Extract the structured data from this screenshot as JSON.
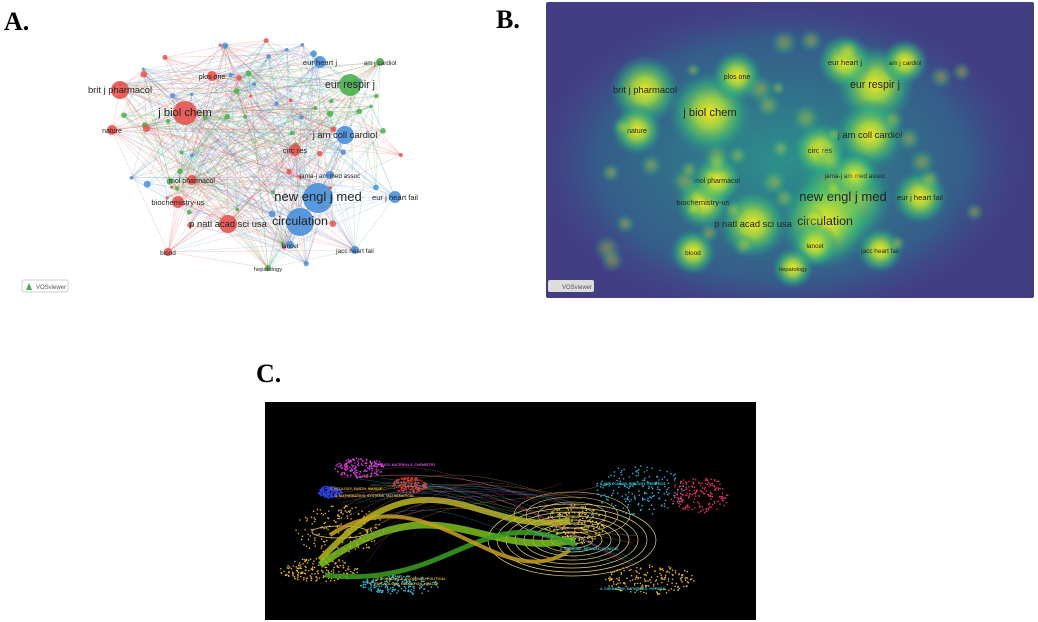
{
  "panels": [
    {
      "label": "A.",
      "logo": "VOSviewer",
      "nodes": [
        "brit j pharmacol",
        "j biol chem",
        "eur respir j",
        "eur heart j",
        "j am coll cardiol",
        "new engl j med",
        "circulation",
        "p natl acad sci usa",
        "biochemistry-us",
        "mol pharmacol",
        "circ res",
        "eur j heart fail",
        "nature",
        "lancet",
        "blood",
        "plos one",
        "jama-j am med assoc",
        "hepatology",
        "am j cardiol",
        "jacc heart fail"
      ]
    },
    {
      "label": "B.",
      "logo": "VOSviewer",
      "nodes": [
        "brit j pharmacol",
        "j biol chem",
        "eur respir j",
        "eur heart j",
        "j am coll cardiol",
        "new engl j med",
        "circulation",
        "p natl acad sci usa",
        "biochemistry-us",
        "mol pharmacol",
        "circ res",
        "eur j heart fail",
        "nature",
        "lancet",
        "blood",
        "plos one",
        "jama-j am med assoc",
        "hepatology",
        "am j cardiol",
        "jacc heart fail"
      ]
    },
    {
      "label": "C.",
      "clusters": [
        "5. PHYSICS, MATERIALS, CHEMISTRY",
        "3. ECOLOGY, EARTH, MARINE",
        "1. MATHEMATICS, SYSTEMS, MATHEMATICAL",
        "10. ECONOMICS, ECONOMIC, POLITICAL",
        "6. PSYCHOLOGY, EDUCATION, HEALTH",
        "8. MOLECULAR, BIOLOGY, GENETICS",
        "2. MEDICINE, MEDICAL, CLINICAL",
        "4. CHEMISTRY, MATERIALS, PHYSICS"
      ]
    }
  ]
}
